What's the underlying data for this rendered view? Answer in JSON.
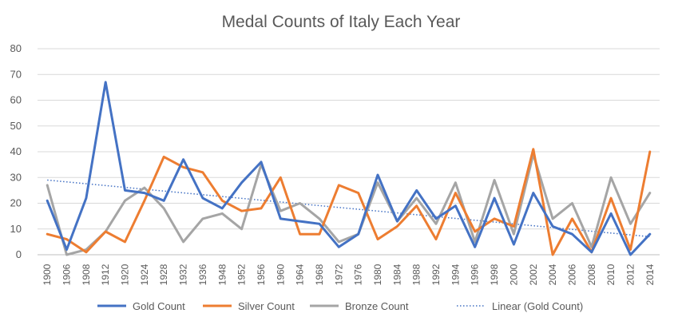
{
  "chart_data": {
    "type": "line",
    "title": "Medal Counts of Italy Each Year",
    "xlabel": "",
    "ylabel": "",
    "ylim": [
      0,
      80
    ],
    "y_ticks": [
      0,
      10,
      20,
      30,
      40,
      50,
      60,
      70,
      80
    ],
    "grid": true,
    "legend_position": "bottom",
    "categories": [
      "1900",
      "1906",
      "1908",
      "1912",
      "1920",
      "1924",
      "1928",
      "1932",
      "1936",
      "1948",
      "1952",
      "1956",
      "1960",
      "1964",
      "1968",
      "1972",
      "1976",
      "1980",
      "1984",
      "1988",
      "1992",
      "1994",
      "1996",
      "1998",
      "2000",
      "2002",
      "2004",
      "2006",
      "2008",
      "2010",
      "2012",
      "2014"
    ],
    "series": [
      {
        "name": "Gold Count",
        "color": "#4472C4",
        "values": [
          21,
          2,
          22,
          67,
          25,
          24,
          21,
          37,
          22,
          18,
          28,
          36,
          14,
          13,
          12,
          3,
          8,
          31,
          13,
          25,
          14,
          19,
          3,
          22,
          4,
          24,
          11,
          8,
          1,
          16,
          0,
          8
        ]
      },
      {
        "name": "Silver Count",
        "color": "#ED7D31",
        "values": [
          8,
          6,
          1,
          9,
          5,
          21,
          38,
          34,
          32,
          21,
          17,
          18,
          30,
          8,
          8,
          27,
          24,
          6,
          11,
          19,
          6,
          24,
          9,
          14,
          11,
          41,
          0,
          14,
          1,
          22,
          2,
          40
        ]
      },
      {
        "name": "Bronze Count",
        "color": "#A5A5A5",
        "values": [
          27,
          0,
          2,
          9,
          21,
          26,
          18,
          5,
          14,
          16,
          10,
          35,
          17,
          20,
          14,
          5,
          8,
          28,
          13,
          22,
          12,
          28,
          5,
          29,
          8,
          39,
          14,
          20,
          3,
          30,
          12,
          24
        ]
      }
    ],
    "trendline": {
      "name": "Linear (Gold Count)",
      "color": "#4472C4",
      "start": 29,
      "end": 7
    }
  }
}
